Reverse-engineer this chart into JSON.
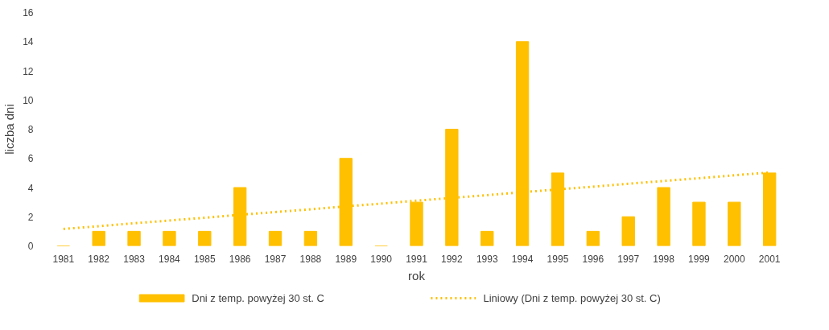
{
  "chart_data": {
    "type": "bar",
    "xlabel": "rok",
    "ylabel": "liczba dni",
    "categories": [
      "1981",
      "1982",
      "1983",
      "1984",
      "1985",
      "1986",
      "1987",
      "1988",
      "1989",
      "1990",
      "1991",
      "1992",
      "1993",
      "1994",
      "1995",
      "1996",
      "1997",
      "1998",
      "1999",
      "2000",
      "2001"
    ],
    "series": [
      {
        "name": "Dni z temp. powyżej 30 st. C",
        "color": "#ffc000",
        "values": [
          0,
          1,
          1,
          1,
          1,
          4,
          1,
          1,
          6,
          0,
          3,
          8,
          1,
          14,
          5,
          1,
          2,
          4,
          3,
          3,
          5
        ]
      },
      {
        "name": "Liniowy (Dni z temp. powyżej 30 st. C)",
        "type": "line",
        "line_style": "dotted",
        "color": "#ffc000",
        "values": [
          1.16,
          1.35,
          1.55,
          1.74,
          1.93,
          2.13,
          2.32,
          2.51,
          2.71,
          2.9,
          3.1,
          3.29,
          3.48,
          3.68,
          3.87,
          4.06,
          4.26,
          4.45,
          4.64,
          4.84,
          5.03
        ]
      }
    ],
    "ylim": [
      0,
      16
    ],
    "yticks": [
      0,
      2,
      4,
      6,
      8,
      10,
      12,
      14,
      16
    ],
    "grid": false,
    "legend": "bottom"
  }
}
